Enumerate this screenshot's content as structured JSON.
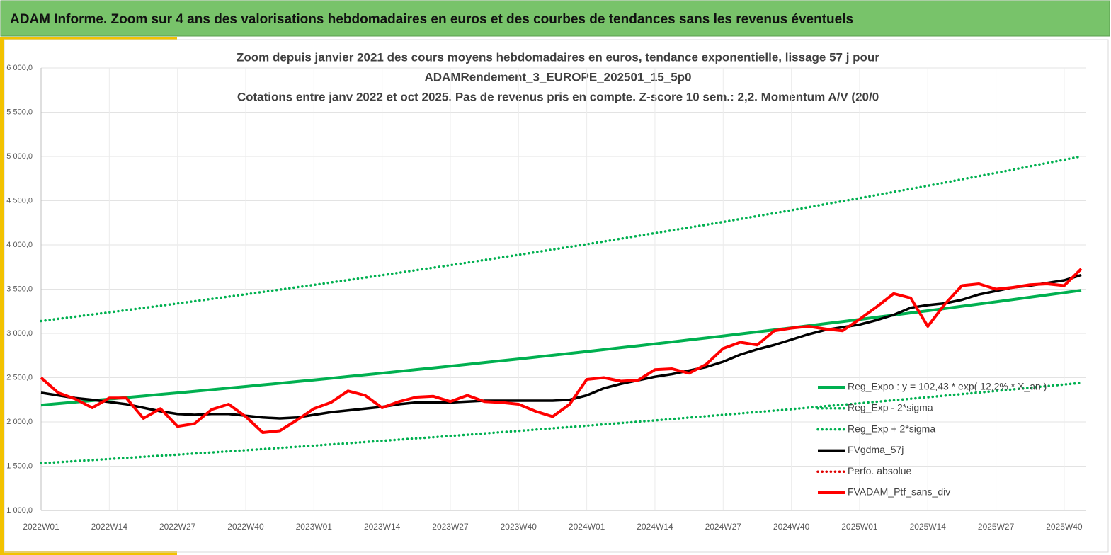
{
  "header": {
    "title": "ADAM Informe. Zoom sur 4 ans des valorisations hebdomadaires en euros et des courbes de tendances sans les revenus éventuels"
  },
  "chart_data": {
    "type": "line",
    "title": [
      "Zoom depuis janvier 2021 des cours moyens hebdomadaires  en euros, tendance exponentielle, lissage 57 j pour",
      "ADAMRendement_3_EUROPE_202501_15_5p0",
      "Cotations entre janv 2022 et oct 2025. Pas de revenus pris en compte. Z-score 10 sem.: 2,2. Momentum A/V (20/0"
    ],
    "categories": [
      "2022W01",
      null,
      null,
      null,
      "2022W14",
      null,
      null,
      null,
      "2022W27",
      null,
      null,
      null,
      "2022W40",
      null,
      null,
      null,
      "2023W01",
      null,
      null,
      null,
      "2023W14",
      null,
      null,
      null,
      "2023W27",
      null,
      null,
      null,
      "2023W40",
      null,
      null,
      null,
      "2024W01",
      null,
      null,
      null,
      "2024W14",
      null,
      null,
      null,
      "2024W27",
      null,
      null,
      null,
      "2024W40",
      null,
      null,
      null,
      "2025W01",
      null,
      null,
      null,
      "2025W14",
      null,
      null,
      null,
      "2025W27",
      null,
      null,
      null,
      "2025W40",
      null
    ],
    "ylim": [
      1000,
      6000
    ],
    "yticks": [
      {
        "value": 1000,
        "label": "1 000,0"
      },
      {
        "value": 1500,
        "label": "1 500,0"
      },
      {
        "value": 2000,
        "label": "2 000,0"
      },
      {
        "value": 2500,
        "label": "2 500,0"
      },
      {
        "value": 3000,
        "label": "3 000,0"
      },
      {
        "value": 3500,
        "label": "3 500,0"
      },
      {
        "value": 4000,
        "label": "4 000,0"
      },
      {
        "value": 4500,
        "label": "4 500,0"
      },
      {
        "value": 5000,
        "label": "5 000,0"
      },
      {
        "value": 5500,
        "label": "5 500,0"
      },
      {
        "value": 6000,
        "label": "6 000,0"
      }
    ],
    "grid": true,
    "legend": "right",
    "series": [
      {
        "name": "Reg_Expo : y = 102,43 * exp( 12,2% * X_an )",
        "color": "#00b050",
        "style": "solid",
        "values": [
          2190,
          2207,
          2224,
          2241,
          2258,
          2276,
          2293,
          2311,
          2328,
          2346,
          2364,
          2382,
          2400,
          2419,
          2437,
          2456,
          2474,
          2493,
          2513,
          2532,
          2551,
          2571,
          2591,
          2610,
          2630,
          2650,
          2671,
          2691,
          2711,
          2732,
          2753,
          2774,
          2795,
          2817,
          2839,
          2860,
          2882,
          2904,
          2927,
          2949,
          2971,
          2994,
          3017,
          3040,
          3063,
          3087,
          3111,
          3134,
          3158,
          3183,
          3207,
          3232,
          3256,
          3281,
          3307,
          3332,
          3357,
          3383,
          3409,
          3435,
          3461,
          3487
        ]
      },
      {
        "name": "Reg_Exp - 2*sigma",
        "color": "#00b050",
        "style": "dotted",
        "values": [
          1533,
          1545,
          1557,
          1569,
          1581,
          1593,
          1606,
          1618,
          1630,
          1643,
          1655,
          1668,
          1680,
          1693,
          1706,
          1719,
          1732,
          1746,
          1759,
          1773,
          1786,
          1800,
          1814,
          1827,
          1841,
          1855,
          1870,
          1884,
          1898,
          1913,
          1928,
          1942,
          1957,
          1972,
          1987,
          2002,
          2017,
          2033,
          2049,
          2064,
          2080,
          2096,
          2112,
          2128,
          2144,
          2161,
          2178,
          2194,
          2211,
          2228,
          2245,
          2262,
          2279,
          2297,
          2315,
          2332,
          2350,
          2368,
          2387,
          2405,
          2423,
          2441
        ]
      },
      {
        "name": "Reg_Exp + 2*sigma",
        "color": "#00b050",
        "style": "dotted",
        "values": [
          3140,
          3165,
          3189,
          3214,
          3238,
          3263,
          3288,
          3313,
          3338,
          3364,
          3390,
          3416,
          3442,
          3469,
          3495,
          3522,
          3548,
          3576,
          3603,
          3631,
          3658,
          3686,
          3715,
          3743,
          3771,
          3800,
          3830,
          3859,
          3888,
          3918,
          3948,
          3978,
          4008,
          4039,
          4071,
          4102,
          4133,
          4165,
          4197,
          4228,
          4260,
          4293,
          4326,
          4359,
          4392,
          4426,
          4461,
          4495,
          4529,
          4564,
          4599,
          4634,
          4669,
          4705,
          4742,
          4778,
          4814,
          4851,
          4889,
          4926,
          4963,
          5001
        ]
      },
      {
        "name": "FVgdma_57j",
        "color": "#000000",
        "style": "solid",
        "values": [
          2330,
          2300,
          2270,
          2250,
          2225,
          2200,
          2160,
          2120,
          2090,
          2080,
          2090,
          2090,
          2070,
          2050,
          2040,
          2050,
          2080,
          2110,
          2130,
          2150,
          2170,
          2200,
          2220,
          2220,
          2220,
          2230,
          2240,
          2240,
          2240,
          2240,
          2240,
          2250,
          2300,
          2380,
          2430,
          2470,
          2510,
          2540,
          2580,
          2620,
          2680,
          2760,
          2820,
          2870,
          2930,
          2990,
          3040,
          3070,
          3100,
          3150,
          3210,
          3290,
          3320,
          3340,
          3380,
          3440,
          3480,
          3520,
          3540,
          3570,
          3600,
          3660
        ]
      },
      {
        "name": "Perfo. absolue",
        "color": "#e00000",
        "style": "dotted"
      },
      {
        "name": "FVADAM_Ptf_sans_div",
        "color": "#ff0000",
        "style": "solid",
        "values": [
          2500,
          2330,
          2260,
          2160,
          2270,
          2270,
          2040,
          2150,
          1950,
          1980,
          2140,
          2200,
          2060,
          1880,
          1900,
          2020,
          2150,
          2220,
          2350,
          2300,
          2160,
          2230,
          2280,
          2290,
          2230,
          2300,
          2230,
          2220,
          2200,
          2120,
          2060,
          2200,
          2480,
          2500,
          2460,
          2470,
          2590,
          2600,
          2550,
          2650,
          2830,
          2900,
          2870,
          3030,
          3060,
          3080,
          3050,
          3030,
          3160,
          3300,
          3450,
          3400,
          3080,
          3330,
          3540,
          3560,
          3500,
          3520,
          3550,
          3560,
          3540,
          3730
        ]
      }
    ]
  }
}
